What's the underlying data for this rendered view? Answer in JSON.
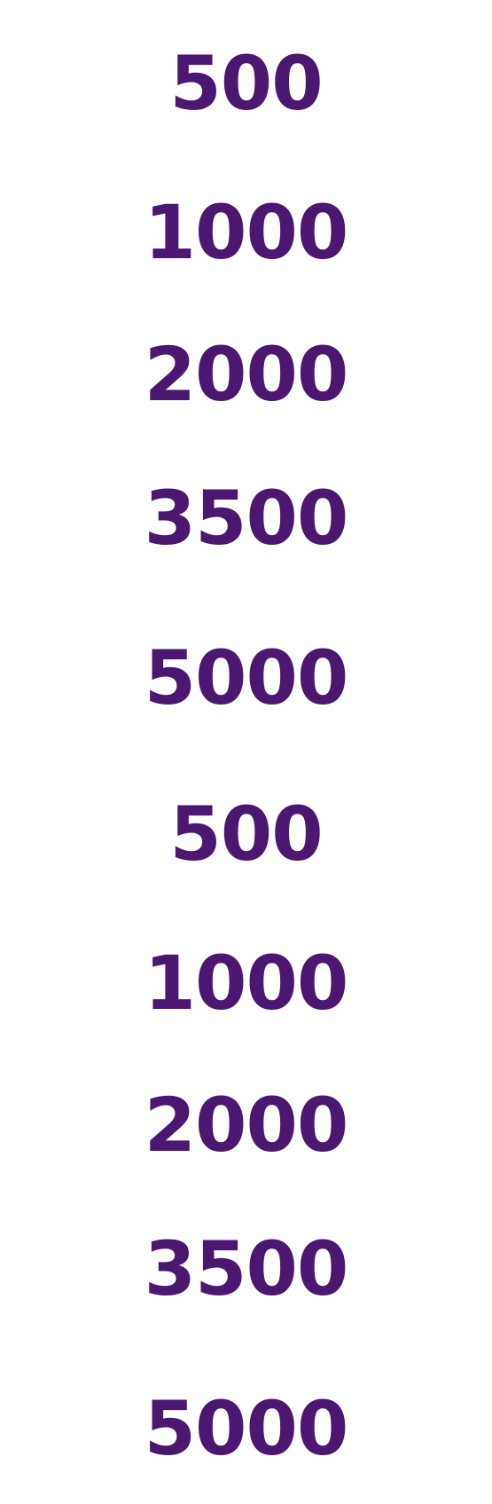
{
  "colors": {
    "text": "#4c1770",
    "background": "#ffffff"
  },
  "values": [
    "500",
    "1000",
    "2000",
    "3500",
    "5000",
    "500",
    "1000",
    "2000",
    "3500",
    "5000"
  ]
}
